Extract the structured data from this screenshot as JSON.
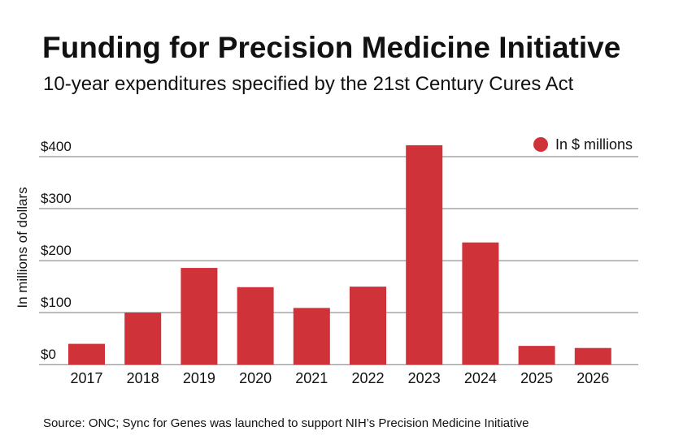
{
  "title": "Funding for Precision Medicine Initiative",
  "subtitle": "10-year expenditures specified by the 21st Century Cures Act",
  "source": "Source: ONC; Sync for Genes was launched to support NIH’s Precision Medicine Initiative",
  "colors": {
    "bar": "#cf3339",
    "grid": "#7a7a7a",
    "text": "#111111"
  },
  "chart_data": {
    "type": "bar",
    "title": "Funding for Precision Medicine Initiative",
    "subtitle": "10-year expenditures specified by the 21st Century Cures Act",
    "xlabel": "",
    "ylabel": "In millions of dollars",
    "categories": [
      "2017",
      "2018",
      "2019",
      "2020",
      "2021",
      "2022",
      "2023",
      "2024",
      "2025",
      "2026"
    ],
    "values": [
      40,
      100,
      186,
      149,
      109,
      150,
      422,
      235,
      36,
      32
    ],
    "ylim": [
      -20,
      420
    ],
    "yticks": [
      0,
      100,
      200,
      300,
      400
    ],
    "ytick_labels": [
      "$0",
      "$100",
      "$200",
      "$300",
      "$400"
    ],
    "legend": {
      "label": "In $ millions",
      "position": "top-right"
    },
    "grid": true
  }
}
